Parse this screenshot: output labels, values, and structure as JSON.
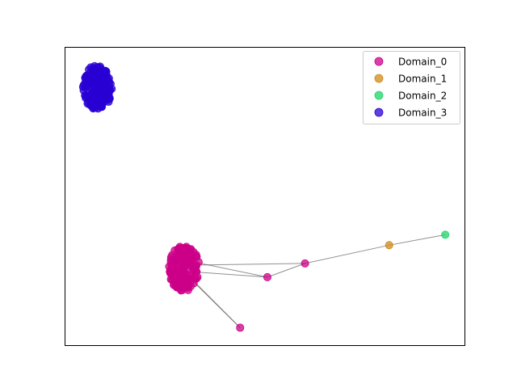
{
  "chart_data": {
    "type": "scatter",
    "title": "",
    "xlabel": "",
    "ylabel": "",
    "xlim": [
      0,
      100
    ],
    "ylim": [
      0,
      100
    ],
    "ticks_visible": false,
    "grid": false,
    "legend": {
      "placement": "top-right"
    },
    "series": [
      {
        "name": "Domain_0",
        "color": "#cc0088",
        "clusters": [
          {
            "center": [
              29.8,
              26.0
            ],
            "spread": [
              3.8,
              7.6
            ],
            "count": 160
          }
        ],
        "points": [
          [
            50.6,
            23.0
          ],
          [
            60.0,
            27.6
          ],
          [
            43.8,
            6.1
          ]
        ]
      },
      {
        "name": "Domain_1",
        "color": "#d08a1a",
        "points": [
          [
            81.0,
            33.7
          ]
        ]
      },
      {
        "name": "Domain_2",
        "color": "#1fd46a",
        "points": [
          [
            95.0,
            37.2
          ]
        ]
      },
      {
        "name": "Domain_3",
        "color": "#2a00d4",
        "clusters": [
          {
            "center": [
              8.2,
              86.5
            ],
            "spread": [
              3.6,
              7.6
            ],
            "count": 160
          }
        ]
      }
    ],
    "edges": [
      [
        [
          29.8,
          27.0
        ],
        [
          60.0,
          27.6
        ]
      ],
      [
        [
          32.5,
          28.0
        ],
        [
          50.6,
          23.0
        ]
      ],
      [
        [
          29.8,
          25.0
        ],
        [
          50.6,
          23.0
        ]
      ],
      [
        [
          30.5,
          24.0
        ],
        [
          43.8,
          6.1
        ]
      ],
      [
        [
          31.0,
          23.0
        ],
        [
          43.8,
          6.1
        ]
      ],
      [
        [
          60.0,
          27.6
        ],
        [
          50.6,
          23.0
        ]
      ],
      [
        [
          60.0,
          27.6
        ],
        [
          81.0,
          33.7
        ]
      ],
      [
        [
          81.0,
          33.7
        ],
        [
          95.0,
          37.2
        ]
      ]
    ]
  }
}
